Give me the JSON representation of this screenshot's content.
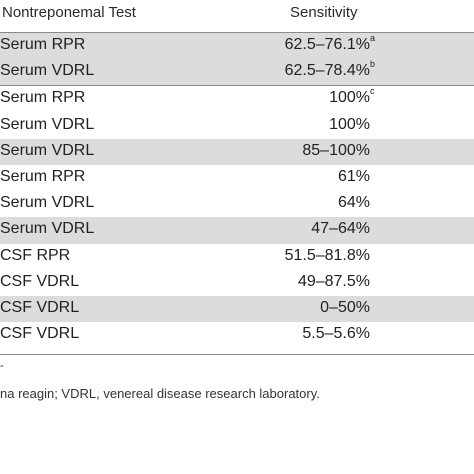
{
  "table": {
    "headers": {
      "test": "Nontreponemal Test",
      "sensitivity": "Sensitivity"
    },
    "rows": [
      {
        "test": "Serum RPR",
        "sensitivity": "62.5–76.1%",
        "sup": "a"
      },
      {
        "test": "Serum VDRL",
        "sensitivity": "62.5–78.4%",
        "sup": "b"
      },
      {
        "test": "Serum RPR",
        "sensitivity": "100%",
        "sup": "c"
      },
      {
        "test": "Serum VDRL",
        "sensitivity": "100%",
        "sup": ""
      },
      {
        "test": "Serum VDRL",
        "sensitivity": "85–100%",
        "sup": ""
      },
      {
        "test": "Serum RPR",
        "sensitivity": "61%",
        "sup": ""
      },
      {
        "test": "Serum VDRL",
        "sensitivity": "64%",
        "sup": ""
      },
      {
        "test": "Serum VDRL",
        "sensitivity": "47–64%",
        "sup": ""
      },
      {
        "test": "CSF RPR",
        "sensitivity": "51.5–81.8%",
        "sup": ""
      },
      {
        "test": "CSF VDRL",
        "sensitivity": "49–87.5%",
        "sup": ""
      },
      {
        "test": "CSF VDRL",
        "sensitivity": "0–50%",
        "sup": ""
      },
      {
        "test": "CSF VDRL",
        "sensitivity": "5.5–5.6%",
        "sup": ""
      }
    ]
  },
  "footer": {
    "dash": "-",
    "footnote": "na reagin; VDRL, venereal disease research laboratory."
  },
  "colors": {
    "shade": "#dcdcdc",
    "rule": "#8a8a8a"
  }
}
